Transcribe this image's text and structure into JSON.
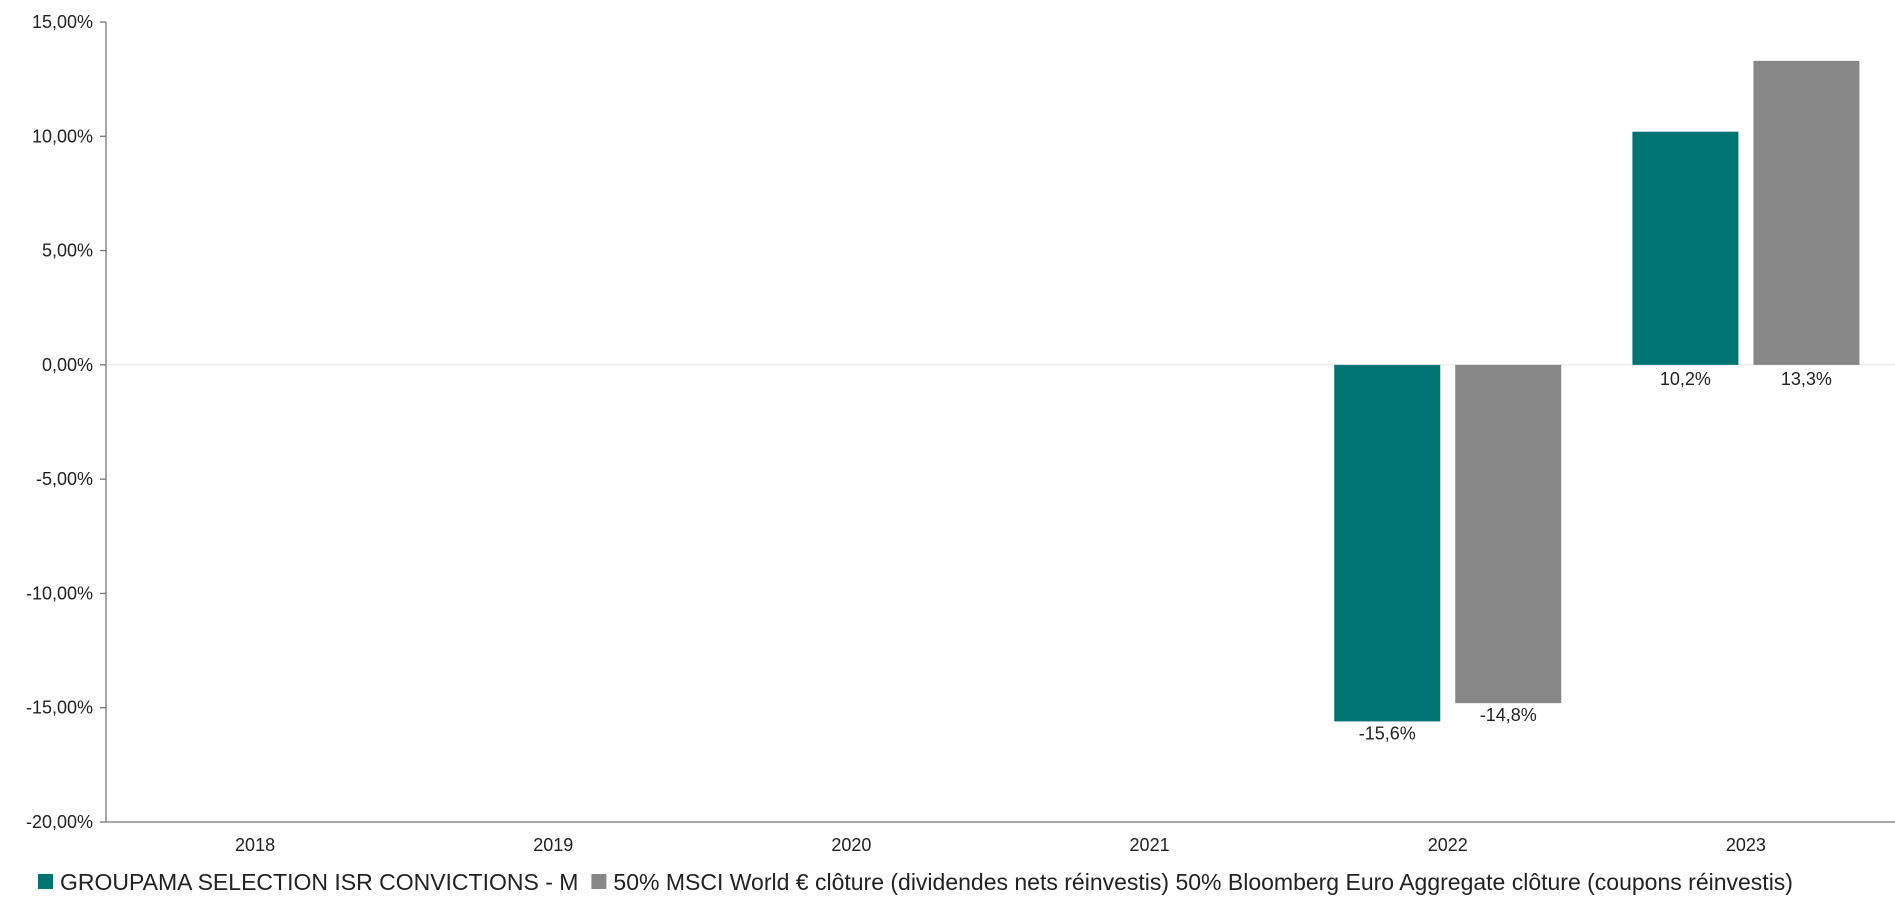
{
  "chart_data": {
    "type": "bar",
    "categories": [
      "2018",
      "2019",
      "2020",
      "2021",
      "2022",
      "2023"
    ],
    "series": [
      {
        "name": "GROUPAMA SELECTION ISR CONVICTIONS - M",
        "color": "#007373",
        "values": [
          null,
          null,
          null,
          null,
          -15.6,
          10.2
        ],
        "labels": [
          "",
          "",
          "",
          "",
          "-15,6%",
          "10,2%"
        ]
      },
      {
        "name": "50% MSCI World € clôture (dividendes nets réinvestis) 50% Bloomberg Euro Aggregate clôture (coupons réinvestis)",
        "color": "#878787",
        "values": [
          null,
          null,
          null,
          null,
          -14.8,
          13.3
        ],
        "labels": [
          "",
          "",
          "",
          "",
          "-14,8%",
          "13,3%"
        ]
      }
    ],
    "ylim": [
      -20,
      15
    ],
    "yticks": [
      15,
      10,
      5,
      0,
      -5,
      -10,
      -15,
      -20
    ],
    "ytick_labels": [
      "15,00%",
      "10,00%",
      "5,00%",
      "0,00%",
      "-5,00%",
      "-10,00%",
      "-15,00%",
      "-20,00%"
    ],
    "grid": false,
    "legend_position": "bottom"
  }
}
